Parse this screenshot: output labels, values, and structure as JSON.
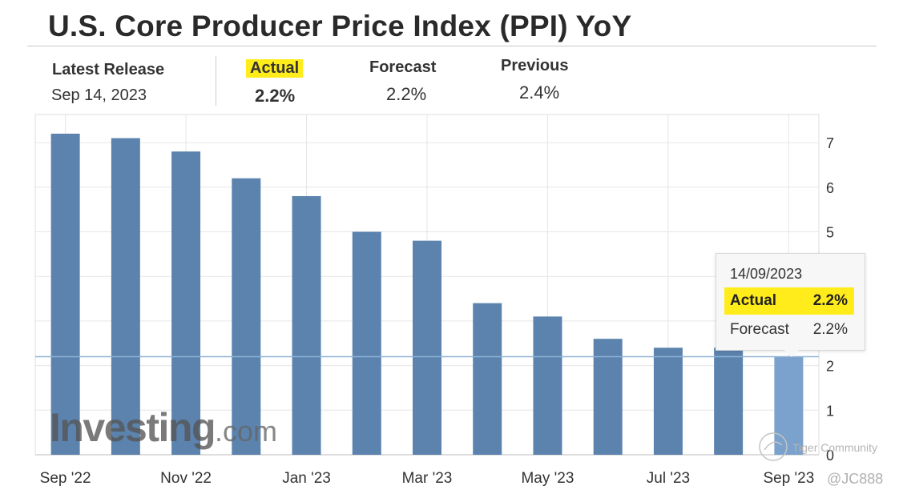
{
  "header": {
    "title": "U.S. Core Producer Price Index (PPI) YoY"
  },
  "summary": {
    "latest_release_label": "Latest Release",
    "latest_release_date": "Sep 14, 2023",
    "actual_label": "Actual",
    "actual_value": "2.2%",
    "forecast_label": "Forecast",
    "forecast_value": "2.2%",
    "previous_label": "Previous",
    "previous_value": "2.4%"
  },
  "chart_data": {
    "type": "bar",
    "title": "U.S. Core Producer Price Index (PPI) YoY",
    "xlabel": "",
    "ylabel": "",
    "ylim": [
      0,
      7.6
    ],
    "yticks": [
      0,
      1,
      2,
      5,
      6,
      7
    ],
    "categories": [
      "Sep '22",
      "Oct '22",
      "Nov '22",
      "Dec '22",
      "Jan '23",
      "Feb '23",
      "Mar '23",
      "Apr '23",
      "May '23",
      "Jun '23",
      "Jul '23",
      "Aug '23",
      "Sep '23"
    ],
    "x_tick_labels": [
      "Sep '22",
      "Nov '22",
      "Jan '23",
      "Mar '23",
      "May '23",
      "Jul '23",
      "Sep '23"
    ],
    "x_tick_indices": [
      0,
      2,
      4,
      6,
      8,
      10,
      12
    ],
    "values": [
      7.2,
      7.1,
      6.8,
      6.2,
      5.8,
      5.0,
      4.8,
      3.4,
      3.1,
      2.6,
      2.4,
      2.4,
      2.2
    ],
    "highlight_index": 12,
    "reference_line": 2.2,
    "colors": {
      "bar": "#5b83ae",
      "highlight": "#7aa2cc",
      "grid": "#e6e6e6",
      "reference": "#8fb3d6"
    },
    "tooltip": {
      "date": "14/09/2023",
      "actual_label": "Actual",
      "actual_value": "2.2%",
      "forecast_label": "Forecast",
      "forecast_value": "2.2%"
    }
  },
  "watermark": {
    "brand": "Investing",
    "suffix": ".com"
  },
  "overlay": {
    "community_text": "Tiger Community",
    "handle": "@JC888"
  }
}
